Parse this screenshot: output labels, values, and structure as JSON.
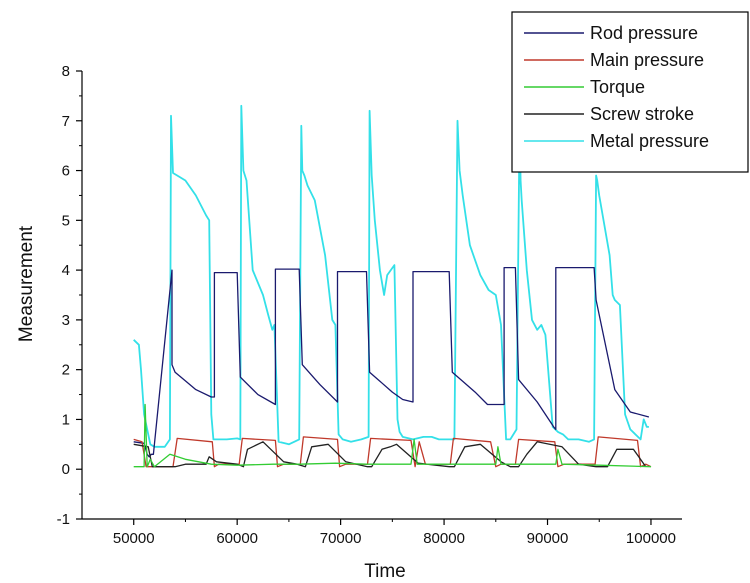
{
  "chart_data": {
    "type": "line",
    "title": "",
    "xlabel": "Time",
    "ylabel": "Measurement",
    "xlim": [
      45000,
      103000
    ],
    "ylim": [
      -1,
      8
    ],
    "xticks": [
      50000,
      60000,
      70000,
      80000,
      90000,
      100000
    ],
    "yticks": [
      -1,
      0,
      1,
      2,
      3,
      4,
      5,
      6,
      7,
      8
    ],
    "grid": false,
    "legend_position": "top-right",
    "colors": {
      "Rod pressure": "#1a1a6e",
      "Main pressure": "#c0392b",
      "Torque": "#33cc33",
      "Screw stroke": "#222222",
      "Metal pressure": "#33e0e8"
    },
    "series": [
      {
        "name": "Rod pressure",
        "x": [
          50000,
          51000,
          51300,
          51500,
          51700,
          51900,
          53700,
          53700,
          54000,
          56000,
          57500,
          57800,
          57800,
          60000,
          60300,
          62000,
          63700,
          63700,
          66000,
          66300,
          68000,
          69700,
          69700,
          72500,
          72800,
          75000,
          76000,
          77000,
          77000,
          80500,
          80800,
          83000,
          84200,
          85800,
          85800,
          86900,
          87200,
          89000,
          90600,
          90800,
          90800,
          94500,
          94700,
          96500,
          98000,
          99800
        ],
        "values": [
          0.55,
          0.52,
          0.3,
          0.25,
          0.3,
          0.3,
          4.0,
          2.1,
          1.95,
          1.6,
          1.45,
          1.45,
          3.95,
          3.95,
          1.85,
          1.5,
          1.3,
          4.02,
          4.02,
          2.1,
          1.7,
          1.35,
          3.97,
          3.97,
          1.95,
          1.55,
          1.4,
          1.35,
          3.97,
          3.97,
          1.95,
          1.55,
          1.3,
          1.3,
          4.05,
          4.05,
          1.8,
          1.35,
          0.85,
          0.8,
          4.05,
          4.05,
          3.4,
          1.6,
          1.15,
          1.05
        ]
      },
      {
        "name": "Main pressure",
        "x": [
          50000,
          50800,
          51200,
          51800,
          53800,
          54200,
          57600,
          57800,
          58200,
          60200,
          60500,
          63700,
          63900,
          64500,
          66100,
          66400,
          69700,
          69900,
          70500,
          72600,
          72900,
          76800,
          77200,
          77600,
          78200,
          80600,
          80900,
          84500,
          85000,
          85500,
          86900,
          87200,
          90700,
          91000,
          91600,
          94600,
          94900,
          98700,
          99000,
          99500,
          100000
        ],
        "values": [
          0.6,
          0.55,
          0.05,
          0.05,
          0.05,
          0.62,
          0.55,
          0.05,
          0.1,
          0.1,
          0.62,
          0.58,
          0.05,
          0.1,
          0.1,
          0.65,
          0.6,
          0.05,
          0.1,
          0.1,
          0.62,
          0.58,
          0.05,
          0.55,
          0.1,
          0.1,
          0.62,
          0.55,
          0.05,
          0.1,
          0.1,
          0.6,
          0.55,
          0.05,
          0.1,
          0.1,
          0.65,
          0.58,
          0.05,
          0.1,
          0.05
        ]
      },
      {
        "name": "Torque",
        "x": [
          50000,
          51000,
          51100,
          51300,
          51600,
          52000,
          53500,
          55000,
          57500,
          60000,
          63500,
          66000,
          69500,
          72500,
          76800,
          77100,
          77400,
          80000,
          85000,
          85200,
          85500,
          90000,
          90800,
          91000,
          91400,
          95000,
          100000
        ],
        "values": [
          0.05,
          0.05,
          1.3,
          0.05,
          0.2,
          0.05,
          0.3,
          0.2,
          0.1,
          0.08,
          0.1,
          0.1,
          0.12,
          0.1,
          0.1,
          0.6,
          0.1,
          0.1,
          0.1,
          0.45,
          0.1,
          0.1,
          0.1,
          0.4,
          0.1,
          0.08,
          0.05
        ]
      },
      {
        "name": "Screw stroke",
        "x": [
          50000,
          51400,
          51800,
          53500,
          54000,
          55000,
          57000,
          57300,
          58000,
          60000,
          60600,
          61000,
          62500,
          64500,
          65800,
          66600,
          67200,
          68800,
          70500,
          72600,
          73000,
          74000,
          74800,
          75400,
          77500,
          80500,
          81000,
          82000,
          83500,
          85500,
          86400,
          87200,
          88000,
          89000,
          91400,
          93000,
          94700,
          95200,
          95800,
          96700,
          98300,
          99500
        ],
        "values": [
          0.5,
          0.45,
          0.05,
          0.05,
          0.05,
          0.1,
          0.1,
          0.25,
          0.15,
          0.1,
          0.05,
          0.4,
          0.55,
          0.15,
          0.1,
          0.05,
          0.45,
          0.5,
          0.15,
          0.05,
          0.05,
          0.4,
          0.45,
          0.5,
          0.12,
          0.05,
          0.05,
          0.45,
          0.5,
          0.15,
          0.05,
          0.05,
          0.3,
          0.55,
          0.45,
          0.1,
          0.05,
          0.05,
          0.05,
          0.4,
          0.4,
          0.05
        ]
      },
      {
        "name": "Metal pressure",
        "x": [
          50000,
          50500,
          50700,
          51000,
          51600,
          52000,
          53000,
          53500,
          53600,
          53800,
          54200,
          55000,
          56000,
          57000,
          57300,
          57500,
          57700,
          57800,
          59000,
          60000,
          60300,
          60400,
          60600,
          60900,
          61500,
          62500,
          63000,
          63400,
          63600,
          64000,
          65000,
          66000,
          66200,
          66300,
          66500,
          66800,
          67500,
          68500,
          69200,
          69500,
          69800,
          70200,
          71000,
          72000,
          72700,
          72800,
          73000,
          73300,
          73800,
          74200,
          74500,
          75200,
          75500,
          75700,
          76000,
          77000,
          78000,
          78800,
          79500,
          80000,
          81000,
          81300,
          81500,
          81800,
          82500,
          83500,
          84300,
          85000,
          85500,
          86000,
          86400,
          87000,
          87300,
          87400,
          87500,
          88000,
          88500,
          89000,
          89400,
          89800,
          90500,
          91000,
          91500,
          92000,
          93000,
          94000,
          94500,
          94700,
          94800,
          95000,
          96000,
          96300,
          96500,
          97000,
          97500,
          98000,
          99000,
          99300,
          99600,
          99800
        ],
        "values": [
          2.6,
          2.5,
          2.0,
          1.1,
          0.5,
          0.45,
          0.45,
          0.6,
          7.1,
          5.95,
          5.9,
          5.8,
          5.5,
          5.1,
          5.0,
          1.1,
          0.6,
          0.6,
          0.6,
          0.62,
          0.6,
          7.3,
          6.0,
          5.8,
          4.0,
          3.5,
          3.1,
          2.8,
          2.9,
          0.55,
          0.5,
          0.6,
          6.9,
          6.0,
          5.9,
          5.7,
          5.4,
          4.3,
          3.0,
          2.9,
          0.7,
          0.6,
          0.55,
          0.6,
          0.65,
          7.2,
          5.9,
          5.0,
          4.0,
          3.5,
          3.9,
          4.1,
          1.0,
          0.75,
          0.65,
          0.6,
          0.65,
          0.65,
          0.6,
          0.6,
          0.6,
          7.0,
          6.0,
          5.5,
          4.5,
          3.9,
          3.6,
          3.5,
          2.9,
          0.6,
          0.6,
          0.8,
          7.0,
          5.8,
          5.4,
          4.0,
          3.0,
          2.8,
          2.9,
          2.7,
          0.85,
          0.75,
          0.7,
          0.6,
          0.6,
          0.55,
          0.6,
          5.9,
          5.8,
          5.5,
          4.3,
          3.5,
          3.4,
          3.3,
          1.1,
          0.8,
          0.6,
          1.0,
          0.85,
          0.85
        ]
      }
    ]
  }
}
